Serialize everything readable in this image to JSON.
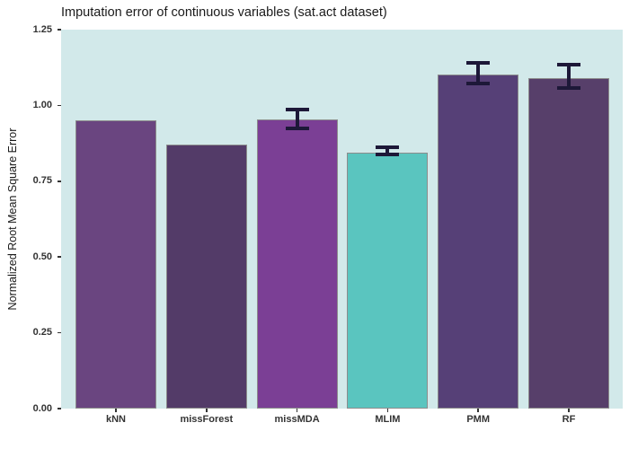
{
  "chart_data": {
    "type": "bar",
    "title": "Imputation error of continuous variables (sat.act dataset)",
    "xlabel": "",
    "ylabel": "Normalized Root Mean Square Error",
    "categories": [
      "kNN",
      "missForest",
      "missMDA",
      "MLIM",
      "PMM",
      "RF"
    ],
    "values": [
      0.95,
      0.871,
      0.953,
      0.845,
      1.102,
      1.09
    ],
    "error_low": [
      null,
      null,
      0.924,
      0.838,
      1.072,
      1.057
    ],
    "error_high": [
      null,
      null,
      0.986,
      0.862,
      1.14,
      1.134
    ],
    "ylim": [
      0,
      1.25
    ],
    "yticks": [
      "0.00",
      "0.25",
      "0.50",
      "0.75",
      "1.00",
      "1.25"
    ],
    "ytick_values": [
      0,
      0.25,
      0.5,
      0.75,
      1.0,
      1.25
    ],
    "grid": false,
    "legend": "none",
    "bar_colors": [
      "#6a4580",
      "#533b68",
      "#7b3f95",
      "#5ac5bf",
      "#564077",
      "#573f6a"
    ],
    "colors": {
      "panel_background": "#d2e9ea",
      "bar_border": "#8c8c8c",
      "error_bar": "#1d1838",
      "tick_text": "#333333",
      "title_text": "#1a1a1a"
    }
  }
}
